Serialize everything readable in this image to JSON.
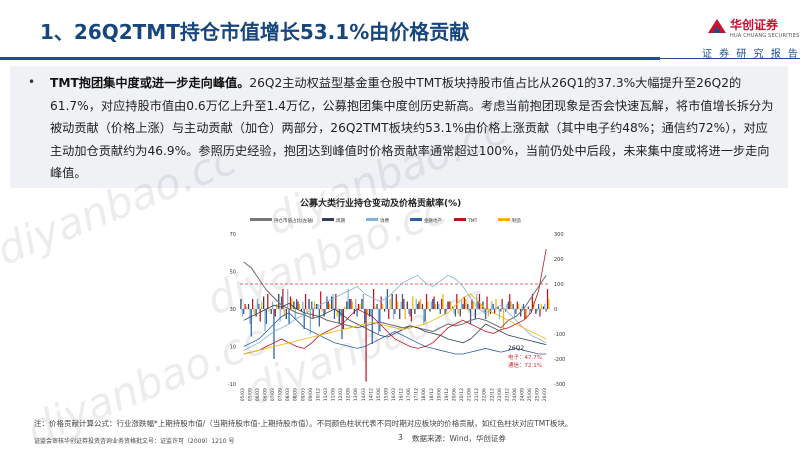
{
  "header": {
    "title": "1、26Q2TMT持仓市值增长53.1%由价格贡献",
    "brand_name": "华创证券",
    "brand_en": "HUA CHUANG SECURITIES",
    "brand_sub": "证 券 研 究 报 告"
  },
  "summary": {
    "bullet": "•",
    "lead": "TMT抱团集中度或进一步走向峰值。",
    "body": "26Q2主动权益型基金重仓股中TMT板块持股市值占比从26Q1的37.3%大幅提升至26Q2的61.7%，对应持股市值由0.6万亿上升至1.4万亿，公募抱团集中度创历史新高。考虑当前抱团现象是否会快速瓦解，将市值增长拆分为被动贡献（价格上涨）与主动贡献（加仓）两部分，26Q2TMT板块约53.1%由价格上涨贡献（其中电子约48%；通信约72%），对应主动加仓贡献约为46.9%。参照历史经验，抱团达到峰值时价格贡献率通常超过100%，当前仍处中后段，未来集中度或将进一步走向峰值。"
  },
  "chart_data": {
    "type": "bar",
    "title": "公募大类行业持仓变动及价格贡献率(%)",
    "legend": [
      "持仓市值占比(左轴)",
      "周期",
      "消费",
      "金融地产",
      "TMT",
      "制造"
    ],
    "legend_position": "top",
    "colors": {
      "持仓市值占比(左轴)": "#777777",
      "周期": "#2f3f55",
      "消费": "#7fb3d9",
      "金融地产": "#2c5fa6",
      "TMT": "#c0121e",
      "制造": "#f4b400",
      "reference": "#e03030"
    },
    "y_left": {
      "min": -10,
      "max": 70,
      "ticks": [
        -10,
        10,
        30,
        50,
        70
      ]
    },
    "y_right": {
      "min": -300,
      "max": 300,
      "ticks": [
        -300,
        -200,
        -100,
        0,
        100,
        200,
        300
      ]
    },
    "x_ticks": [
      "05/03",
      "05/09",
      "06/03",
      "06/09",
      "07/03",
      "07/09",
      "08/03",
      "08/09",
      "09/03",
      "09/09",
      "10/12",
      "11/03",
      "11/09",
      "12/03",
      "12/09",
      "13/06",
      "14/03",
      "14/12",
      "15/06",
      "15/09",
      "16/03",
      "16/12",
      "17/06",
      "17/12",
      "18/06",
      "18/12",
      "19/06",
      "19/12",
      "20/06",
      "20/12",
      "21/06",
      "21/12",
      "22/06",
      "22/12",
      "23/06",
      "23/12",
      "24/06",
      "24/09",
      "25/06",
      "25/09",
      "26/03"
    ],
    "reference_line_right": 100,
    "annotation": {
      "label": "26Q2",
      "electronics": "电子：47.7%",
      "telecom": "通信：72.1%"
    },
    "series": [
      {
        "name": "持仓市值占比(左轴)",
        "axis": "left",
        "kind": "line",
        "values": [
          55,
          52,
          46,
          40,
          36,
          32,
          30,
          28,
          27,
          25,
          26,
          24,
          23,
          22,
          21,
          20,
          21,
          22,
          23,
          22,
          21,
          20,
          21,
          20,
          19,
          18,
          20,
          22,
          21,
          22,
          24,
          25,
          24,
          22,
          20,
          24,
          26,
          30,
          36,
          42,
          48
        ]
      },
      {
        "name": "周期",
        "axis": "left",
        "kind": "line",
        "values": [
          24,
          26,
          28,
          30,
          32,
          31,
          33,
          30,
          28,
          27,
          26,
          28,
          30,
          27,
          24,
          22,
          20,
          18,
          16,
          15,
          17,
          19,
          21,
          20,
          18,
          17,
          16,
          14,
          13,
          12,
          14,
          18,
          22,
          20,
          18,
          16,
          15,
          14,
          13,
          12,
          11
        ]
      },
      {
        "name": "消费",
        "axis": "left",
        "kind": "line",
        "values": [
          8,
          10,
          12,
          15,
          18,
          20,
          22,
          25,
          27,
          30,
          32,
          34,
          36,
          38,
          40,
          42,
          38,
          36,
          34,
          36,
          40,
          44,
          46,
          48,
          44,
          42,
          45,
          48,
          46,
          42,
          36,
          30,
          28,
          30,
          32,
          28,
          24,
          20,
          16,
          14,
          12
        ]
      },
      {
        "name": "金融地产",
        "axis": "left",
        "kind": "line",
        "values": [
          10,
          12,
          14,
          18,
          22,
          26,
          28,
          24,
          20,
          18,
          16,
          14,
          12,
          11,
          10,
          9,
          10,
          12,
          14,
          16,
          18,
          16,
          14,
          12,
          10,
          9,
          8,
          7,
          6,
          6,
          7,
          8,
          9,
          8,
          7,
          8,
          9,
          8,
          7,
          6,
          6
        ]
      },
      {
        "name": "TMT",
        "axis": "left",
        "kind": "line",
        "values": [
          6,
          7,
          8,
          10,
          12,
          14,
          12,
          10,
          9,
          12,
          16,
          18,
          20,
          22,
          26,
          30,
          28,
          26,
          22,
          18,
          14,
          12,
          10,
          9,
          10,
          12,
          16,
          20,
          22,
          24,
          22,
          20,
          18,
          17,
          19,
          20,
          22,
          24,
          28,
          40,
          62
        ]
      },
      {
        "name": "制造",
        "axis": "left",
        "kind": "line",
        "values": [
          6,
          7,
          8,
          9,
          10,
          11,
          12,
          13,
          14,
          15,
          16,
          17,
          18,
          19,
          20,
          21,
          22,
          23,
          22,
          21,
          20,
          19,
          20,
          21,
          22,
          24,
          26,
          28,
          32,
          36,
          38,
          34,
          30,
          28,
          26,
          24,
          22,
          20,
          18,
          16,
          14
        ]
      },
      {
        "name": "周期",
        "axis": "right",
        "kind": "bar",
        "values": [
          40,
          20,
          -30,
          50,
          -20,
          60,
          -40,
          30,
          -10,
          40,
          20,
          -30,
          50,
          -60,
          30,
          -20,
          40,
          -30,
          20,
          -10,
          60,
          -40,
          30,
          -20,
          20,
          -10,
          30,
          -20,
          10,
          -30,
          20,
          -40,
          30,
          -20,
          10,
          -10,
          20,
          -30,
          10,
          -20,
          10
        ]
      },
      {
        "name": "消费",
        "axis": "right",
        "kind": "bar",
        "values": [
          -30,
          -60,
          40,
          -90,
          30,
          -50,
          80,
          -40,
          30,
          -100,
          20,
          -20,
          60,
          -30,
          80,
          40,
          60,
          -30,
          -100,
          50,
          -40,
          30,
          -20,
          40,
          -60,
          30,
          20,
          -10,
          -20,
          40,
          -10,
          60,
          -20,
          30,
          -40,
          20,
          -30,
          10,
          -20,
          -10,
          20
        ]
      },
      {
        "name": "金融地产",
        "axis": "right",
        "kind": "bar",
        "values": [
          -20,
          -110,
          20,
          -60,
          -200,
          50,
          -60,
          40,
          -80,
          30,
          -70,
          50,
          -40,
          -120,
          40,
          -30,
          -60,
          -140,
          -90,
          80,
          -20,
          60,
          -30,
          20,
          -50,
          40,
          -20,
          30,
          -30,
          20,
          -60,
          30,
          -40,
          20,
          -10,
          30,
          -20,
          20,
          -10,
          20,
          -10
        ]
      },
      {
        "name": "TMT",
        "axis": "right",
        "kind": "bar",
        "values": [
          20,
          40,
          -50,
          60,
          -30,
          80,
          50,
          30,
          60,
          -40,
          70,
          30,
          60,
          -80,
          40,
          20,
          -290,
          80,
          50,
          -40,
          60,
          40,
          -50,
          30,
          60,
          50,
          40,
          30,
          60,
          50,
          40,
          60,
          50,
          -20,
          40,
          60,
          30,
          -40,
          60,
          -30,
          80
        ]
      },
      {
        "name": "制造",
        "axis": "right",
        "kind": "bar",
        "values": [
          10,
          -20,
          30,
          -10,
          20,
          -30,
          40,
          20,
          -20,
          30,
          -10,
          20,
          -30,
          10,
          30,
          20,
          -20,
          10,
          20,
          40,
          30,
          -40,
          50,
          40,
          30,
          20,
          60,
          30,
          -20,
          40,
          30,
          20,
          -30,
          40,
          -80,
          30,
          20,
          -40,
          30,
          20,
          40
        ]
      }
    ]
  },
  "note": "注：价格贡献计算公式：行业涨跌幅*上期持股市值/（当期持股市值-上期持股市值）。不同颜色柱状代表不同时期对应板块的价格贡献，如红色柱状对应TMT板块。",
  "footer": {
    "license": "证监会审核华创证券投资咨询业务资格批文号：证监许可（2009）1210 号",
    "page": "3",
    "source": "数据来源：Wind，华创证券"
  },
  "watermark_text": "diyanbao.cc"
}
